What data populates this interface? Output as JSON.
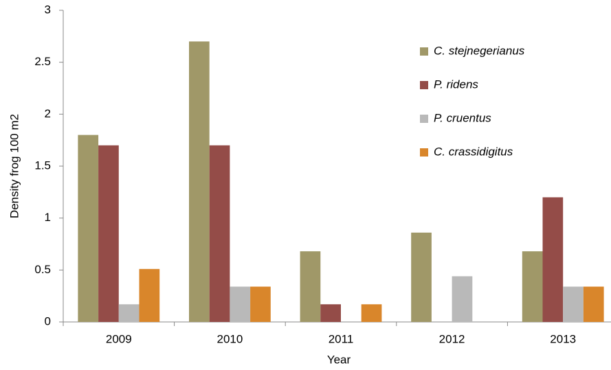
{
  "chart_data": {
    "type": "bar",
    "x_label": "Year",
    "y_label": "Density frog 100 m2",
    "categories": [
      "2009",
      "2010",
      "2011",
      "2012",
      "2013"
    ],
    "series": [
      {
        "name": "C. stejnegerianus",
        "color": "#a09868",
        "values": [
          1.8,
          2.7,
          0.68,
          0.86,
          0.68
        ]
      },
      {
        "name": "P. ridens",
        "color": "#944c48",
        "values": [
          1.7,
          1.7,
          0.17,
          0,
          1.2
        ]
      },
      {
        "name": "P. cruentus",
        "color": "#b9b9b9",
        "values": [
          0.17,
          0.34,
          0,
          0.44,
          0.34
        ]
      },
      {
        "name": "C. crassidigitus",
        "color": "#d9862b",
        "values": [
          0.51,
          0.34,
          0.17,
          0,
          0.34
        ]
      }
    ],
    "ylim": [
      0,
      3
    ],
    "yticks": [
      0,
      0.5,
      1,
      1.5,
      2,
      2.5,
      3
    ],
    "grid": false
  }
}
